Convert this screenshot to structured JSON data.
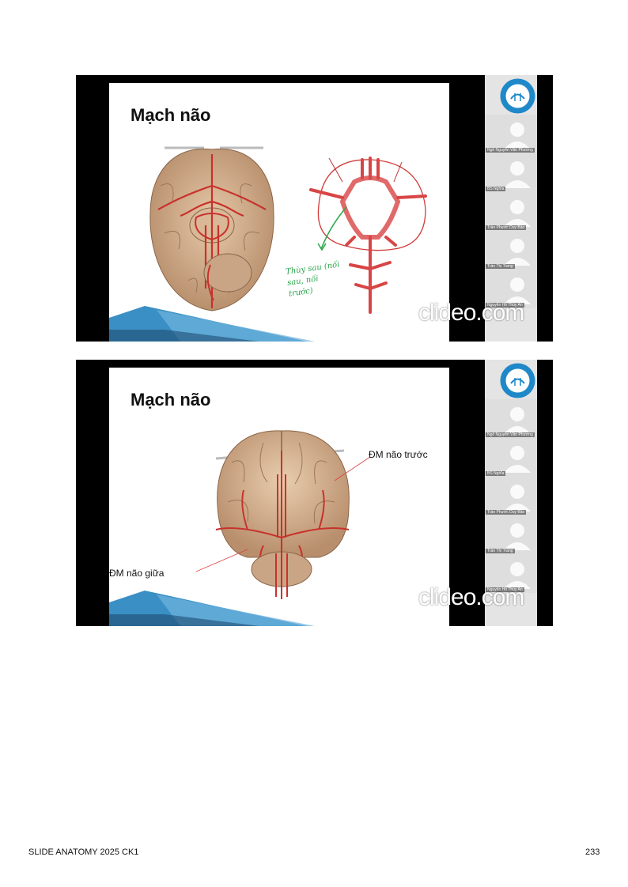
{
  "slides": [
    {
      "title": "Mạch não",
      "watermark": "clideo.com",
      "handwritten_note": "Thùy sau (nối sau, nối trước)",
      "participants": [
        "Ngô Nguyễn Văn Phương",
        "BS Nghĩa",
        "Trần Phước Duy Bảo",
        "Trần Thị Trang",
        "Nguyễn Hồ Thùy An"
      ]
    },
    {
      "title": "Mạch não",
      "watermark": "clideo.com",
      "label_anterior": "ĐM não trước",
      "label_middle": "ĐM não giữa",
      "participants": [
        "Ngô Nguyễn Văn Phương",
        "BS Nghĩa",
        "Trần Phước Duy Bảo",
        "Trần Thị Trang",
        "Nguyễn Hồ Thùy An"
      ]
    }
  ],
  "colors": {
    "accent_blue": "#3a8fc4",
    "logo_blue": "#1f88c9",
    "vessel_red": "#c8322c"
  },
  "footer": {
    "left": "SLIDE ANATOMY 2025 CK1",
    "right": "233"
  }
}
